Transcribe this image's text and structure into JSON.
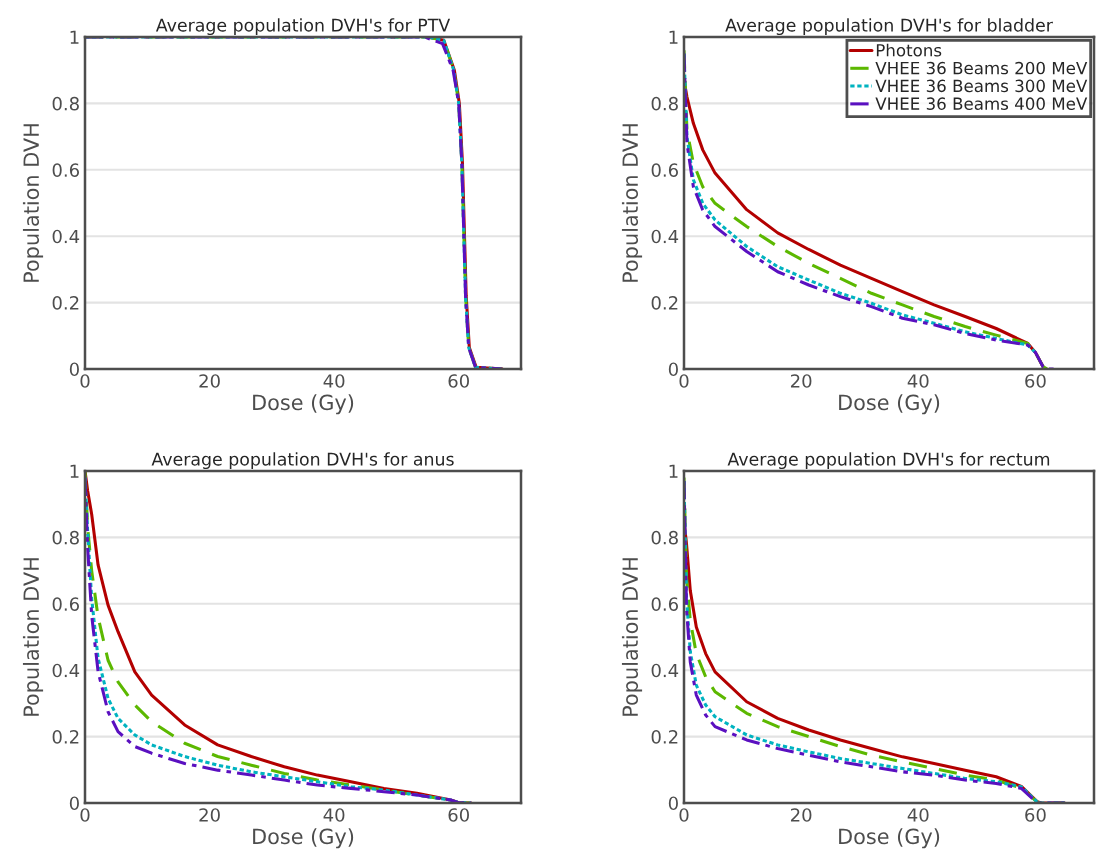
{
  "chart_data": [
    {
      "type": "line",
      "title": "Average population DVH's for PTV",
      "xlabel": "Dose (Gy)",
      "ylabel": "Population DVH",
      "xlim": [
        0,
        70
      ],
      "xticks": [
        0,
        20,
        40,
        60
      ],
      "ylim": [
        0,
        1
      ],
      "yticks": [
        0,
        0.2,
        0.4,
        0.6,
        0.8,
        1
      ],
      "grid": "y",
      "legend": false,
      "series": [
        {
          "color": "#b30000",
          "line_style": "solid",
          "x": [
            55,
            57.6,
            59.3,
            60.1,
            60.6,
            60.9,
            61.2,
            61.7,
            62.8,
            67
          ],
          "values": [
            1,
            0.99,
            0.9,
            0.8,
            0.62,
            0.42,
            0.22,
            0.065,
            0.005,
            0
          ]
        },
        {
          "color": "#5cb800",
          "line_style": "dashed",
          "x": [
            0,
            50,
            55,
            57.6,
            59.2,
            60,
            60.5,
            60.8,
            61.1,
            61.6,
            62.7,
            67
          ],
          "values": [
            1,
            1,
            1,
            0.99,
            0.9,
            0.8,
            0.62,
            0.42,
            0.22,
            0.065,
            0.005,
            0
          ]
        },
        {
          "color": "#00b3c0",
          "line_style": "dotted",
          "x": [
            0,
            50,
            55,
            57.6,
            59.2,
            60,
            60.5,
            60.8,
            61.1,
            61.6,
            62.7,
            67
          ],
          "values": [
            1,
            1,
            1,
            0.99,
            0.9,
            0.8,
            0.62,
            0.42,
            0.22,
            0.065,
            0.005,
            0
          ]
        },
        {
          "color": "#5a10c0",
          "line_style": "dashdot",
          "x": [
            0,
            50,
            54.5,
            57.4,
            59.1,
            60,
            60.5,
            60.8,
            61.1,
            61.6,
            62.7,
            67
          ],
          "values": [
            1,
            1,
            1,
            0.98,
            0.9,
            0.8,
            0.62,
            0.42,
            0.22,
            0.065,
            0.005,
            0
          ]
        }
      ]
    },
    {
      "type": "line",
      "title": "Average population DVH's for bladder",
      "xlabel": "Dose (Gy)",
      "ylabel": "Population DVH",
      "xlim": [
        0,
        70
      ],
      "xticks": [
        0,
        20,
        40,
        60
      ],
      "ylim": [
        0,
        1
      ],
      "yticks": [
        0,
        0.2,
        0.4,
        0.6,
        0.8,
        1
      ],
      "grid": "y",
      "legend": "top right",
      "x": [
        0,
        0.5,
        1.6,
        3.2,
        5.3,
        10.7,
        16,
        21.3,
        26.7,
        32,
        37.3,
        42.7,
        48,
        53.3,
        58.7,
        60,
        61.3,
        62,
        64
      ],
      "series": [
        {
          "name": "Photons",
          "color": "#b30000",
          "line_style": "solid",
          "values": [
            0.87,
            0.82,
            0.74,
            0.66,
            0.59,
            0.48,
            0.41,
            0.36,
            0.313,
            0.273,
            0.233,
            0.193,
            0.158,
            0.122,
            0.077,
            0.05,
            0.007,
            null,
            null
          ]
        },
        {
          "name": "VHEE 36 Beams 200 MeV",
          "color": "#5cb800",
          "line_style": "dashed",
          "values": [
            0.96,
            0.72,
            0.62,
            0.549,
            0.499,
            0.429,
            0.369,
            0.318,
            0.273,
            0.228,
            0.193,
            0.158,
            0.128,
            0.102,
            0.077,
            0.05,
            0.007,
            0,
            0
          ]
        },
        {
          "name": "VHEE 36 Beams 300 MeV",
          "color": "#00b3c0",
          "line_style": "dotted",
          "values": [
            0.95,
            0.7,
            0.57,
            0.499,
            0.449,
            0.369,
            0.308,
            0.268,
            0.228,
            0.198,
            0.163,
            0.138,
            0.112,
            0.092,
            0.072,
            0.05,
            null,
            null,
            null
          ]
        },
        {
          "name": "VHEE 36 Beams 400 MeV",
          "color": "#5a10c0",
          "line_style": "dashdot",
          "values": [
            0.95,
            0.68,
            0.549,
            0.479,
            0.429,
            0.354,
            0.293,
            0.253,
            0.218,
            0.188,
            0.153,
            0.133,
            0.107,
            0.087,
            0.072,
            0.05,
            0.007,
            0,
            0
          ]
        }
      ]
    },
    {
      "type": "line",
      "title": "Average population DVH's for anus",
      "xlabel": "Dose (Gy)",
      "ylabel": "Population DVH",
      "xlim": [
        0,
        70
      ],
      "xticks": [
        0,
        20,
        40,
        60
      ],
      "ylim": [
        0,
        1
      ],
      "yticks": [
        0,
        0.2,
        0.4,
        0.6,
        0.8,
        1
      ],
      "grid": "y",
      "legend": false,
      "x": [
        0,
        0.43,
        1.07,
        2.1,
        3.7,
        5.3,
        8,
        10.7,
        16,
        21.3,
        26.7,
        32,
        37.3,
        42.7,
        48,
        53.3,
        58.7,
        60,
        62
      ],
      "series": [
        {
          "color": "#b30000",
          "line_style": "solid",
          "values": [
            1,
            0.94,
            0.87,
            0.717,
            0.596,
            0.516,
            0.395,
            0.325,
            0.235,
            0.175,
            0.14,
            0.109,
            0.084,
            0.064,
            0.044,
            0.029,
            0.009,
            0.001,
            0
          ]
        },
        {
          "color": "#5cb800",
          "line_style": "dashed",
          "values": [
            1,
            0.83,
            0.7,
            0.56,
            0.43,
            0.365,
            0.295,
            0.245,
            0.18,
            0.14,
            0.114,
            0.089,
            0.069,
            0.054,
            0.039,
            0.024,
            0.009,
            0.001,
            0
          ]
        },
        {
          "color": "#00b3c0",
          "line_style": "dotted",
          "values": [
            0.98,
            0.817,
            0.616,
            0.436,
            0.315,
            0.255,
            0.205,
            0.175,
            0.14,
            0.114,
            0.094,
            0.079,
            0.064,
            0.049,
            0.039,
            0.024,
            0.009,
            0.001,
            0
          ]
        },
        {
          "color": "#5a10c0",
          "line_style": "dashdot",
          "values": [
            0.98,
            0.767,
            0.566,
            0.396,
            0.275,
            0.215,
            0.17,
            0.15,
            0.119,
            0.099,
            0.084,
            0.069,
            0.054,
            0.044,
            0.034,
            0.024,
            0.009,
            0.001,
            0
          ]
        }
      ]
    },
    {
      "type": "line",
      "title": "Average population DVH's for rectum",
      "xlabel": "Dose (Gy)",
      "ylabel": "Population DVH",
      "xlim": [
        0,
        70
      ],
      "xticks": [
        0,
        20,
        40,
        60
      ],
      "ylim": [
        0,
        1
      ],
      "yticks": [
        0,
        0.2,
        0.4,
        0.6,
        0.8,
        1
      ],
      "grid": "y",
      "legend": false,
      "x": [
        0,
        0.43,
        1.07,
        2.1,
        3.7,
        5.3,
        10.7,
        16,
        21.3,
        26.7,
        32,
        37.3,
        42.7,
        48,
        53.3,
        57.6,
        60.3,
        61,
        65
      ],
      "series": [
        {
          "color": "#b30000",
          "line_style": "solid",
          "values": [
            0.85,
            0.78,
            0.64,
            0.53,
            0.45,
            0.395,
            0.305,
            0.255,
            0.22,
            0.19,
            0.164,
            0.139,
            0.119,
            0.099,
            0.079,
            0.05,
            0.004,
            0,
            0
          ]
        },
        {
          "color": "#5cb800",
          "line_style": "dashed",
          "values": [
            0.98,
            0.68,
            0.55,
            0.45,
            0.38,
            0.335,
            0.27,
            0.23,
            0.2,
            0.17,
            0.144,
            0.124,
            0.104,
            0.084,
            0.069,
            0.045,
            0.003,
            0,
            0
          ]
        },
        {
          "color": "#00b3c0",
          "line_style": "dotted",
          "values": [
            0.97,
            0.616,
            0.456,
            0.355,
            0.295,
            0.26,
            0.205,
            0.175,
            0.154,
            0.134,
            0.119,
            0.104,
            0.089,
            0.074,
            0.064,
            0.049,
            0.003,
            0,
            0
          ]
        },
        {
          "color": "#5a10c0",
          "line_style": "dashdot",
          "values": [
            0.97,
            0.586,
            0.425,
            0.325,
            0.265,
            0.23,
            0.19,
            0.164,
            0.144,
            0.124,
            0.109,
            0.094,
            0.084,
            0.069,
            0.059,
            0.044,
            0,
            0,
            0
          ]
        }
      ]
    }
  ]
}
